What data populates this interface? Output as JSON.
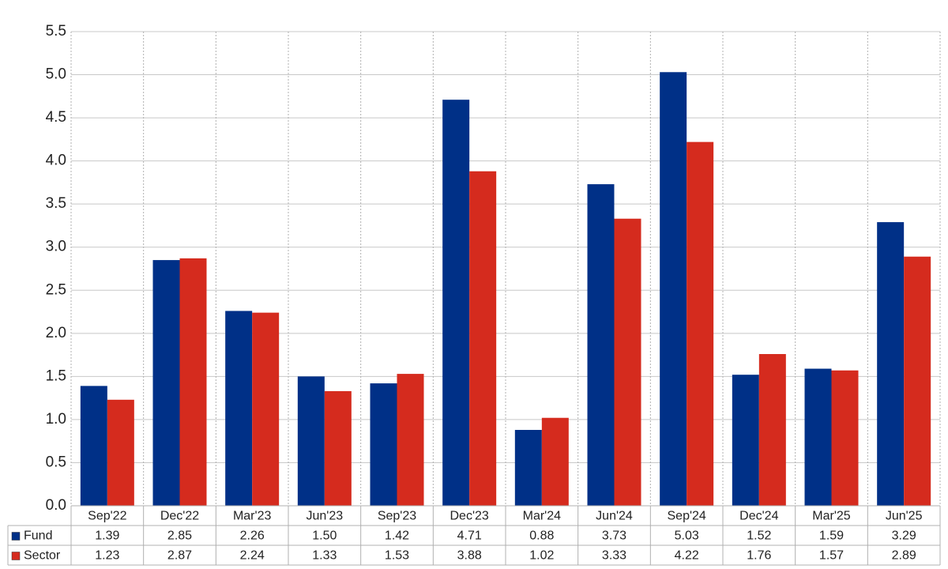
{
  "chart_data": {
    "type": "bar",
    "categories": [
      "Sep'22",
      "Dec'22",
      "Mar'23",
      "Jun'23",
      "Sep'23",
      "Dec'23",
      "Mar'24",
      "Jun'24",
      "Sep'24",
      "Dec'24",
      "Mar'25",
      "Jun'25"
    ],
    "series": [
      {
        "name": "Fund",
        "color": "#003087",
        "values": [
          1.39,
          2.85,
          2.26,
          1.5,
          1.42,
          4.71,
          0.88,
          3.73,
          5.03,
          1.52,
          1.59,
          3.29
        ],
        "value_labels": [
          "1.39",
          "2.85",
          "2.26",
          "1.50",
          "1.42",
          "4.71",
          "0.88",
          "3.73",
          "5.03",
          "1.52",
          "1.59",
          "3.29"
        ]
      },
      {
        "name": "Sector",
        "color": "#d52b1e",
        "values": [
          1.23,
          2.87,
          2.24,
          1.33,
          1.53,
          3.88,
          1.02,
          3.33,
          4.22,
          1.76,
          1.57,
          2.89
        ],
        "value_labels": [
          "1.23",
          "2.87",
          "2.24",
          "1.33",
          "1.53",
          "3.88",
          "1.02",
          "3.33",
          "4.22",
          "1.76",
          "1.57",
          "2.89"
        ]
      }
    ],
    "ylim": [
      0,
      5.5
    ],
    "yticks": [
      {
        "value": 0,
        "label": "0.0"
      },
      0.5,
      {
        "value": 1,
        "label": "1.0"
      },
      1.5,
      {
        "value": 2,
        "label": "2.0"
      },
      2.5,
      {
        "value": 3,
        "label": "3.0"
      },
      3.5,
      {
        "value": 4,
        "label": "4.0"
      },
      4.5,
      {
        "value": 5,
        "label": "5.0"
      },
      5.5
    ],
    "grid": true
  }
}
